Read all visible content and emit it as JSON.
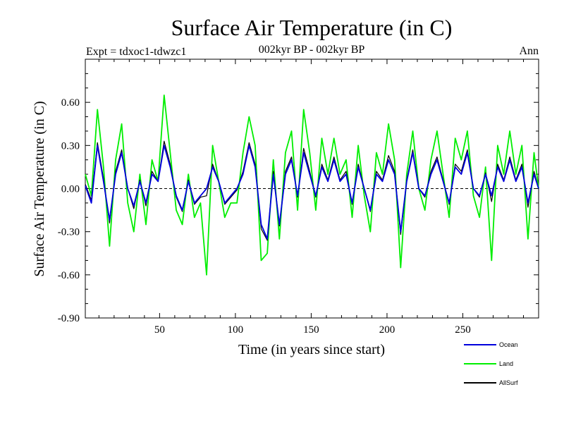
{
  "chart_data": {
    "type": "line",
    "title": "Surface Air Temperature (in C)",
    "subtitle": "002kyr BP - 002kyr BP",
    "experiment": "Expt = tdxoc1-tdwzc1",
    "season": "Ann",
    "xlabel": "Time (in years since start)",
    "ylabel": "Surface Air Temperature (in C)",
    "xlim": [
      1,
      300
    ],
    "ylim": [
      -0.9,
      0.9
    ],
    "xticks": [
      50,
      100,
      150,
      200,
      250
    ],
    "xtick_labels": [
      "50",
      "100",
      "150",
      "200",
      "250"
    ],
    "yticks": [
      -0.9,
      -0.6,
      -0.3,
      0.0,
      0.3,
      0.6
    ],
    "ytick_labels": [
      "-0.90",
      "-0.60",
      "-0.30",
      "0.00",
      "0.30",
      "0.60"
    ],
    "zero_line": "dashed",
    "x": [
      1,
      5,
      9,
      13,
      17,
      21,
      25,
      29,
      33,
      37,
      41,
      45,
      49,
      53,
      57,
      61,
      65,
      69,
      73,
      77,
      81,
      85,
      89,
      93,
      97,
      101,
      105,
      109,
      113,
      117,
      121,
      125,
      129,
      133,
      137,
      141,
      145,
      149,
      153,
      157,
      161,
      165,
      169,
      173,
      177,
      181,
      185,
      189,
      193,
      197,
      201,
      205,
      209,
      213,
      217,
      221,
      225,
      229,
      233,
      237,
      241,
      245,
      249,
      253,
      257,
      261,
      265,
      269,
      273,
      277,
      281,
      285,
      289,
      293,
      297,
      300
    ],
    "series": [
      {
        "name": "Ocean",
        "color": "#0000dd",
        "values": [
          0.02,
          -0.1,
          0.3,
          0.05,
          -0.22,
          0.1,
          0.25,
          0.0,
          -0.12,
          0.05,
          -0.1,
          0.1,
          0.05,
          0.3,
          0.15,
          -0.05,
          -0.15,
          0.05,
          -0.1,
          -0.05,
          0.0,
          0.15,
          0.05,
          -0.1,
          -0.05,
          0.0,
          0.1,
          0.3,
          0.15,
          -0.25,
          -0.35,
          0.1,
          -0.25,
          0.1,
          0.2,
          -0.05,
          0.25,
          0.1,
          -0.05,
          0.15,
          0.05,
          0.2,
          0.05,
          0.1,
          -0.1,
          0.15,
          0.0,
          -0.15,
          0.1,
          0.05,
          0.2,
          0.1,
          -0.3,
          0.05,
          0.25,
          0.0,
          -0.05,
          0.1,
          0.2,
          0.05,
          -0.1,
          0.15,
          0.1,
          0.25,
          0.0,
          -0.05,
          0.1,
          -0.05,
          0.15,
          0.05,
          0.2,
          0.05,
          0.15,
          -0.1,
          0.1,
          0.0
        ]
      },
      {
        "name": "Land",
        "color": "#00ee00",
        "values": [
          0.1,
          -0.05,
          0.55,
          0.15,
          -0.4,
          0.2,
          0.45,
          -0.1,
          -0.3,
          0.1,
          -0.25,
          0.2,
          0.05,
          0.65,
          0.25,
          -0.15,
          -0.25,
          0.1,
          -0.2,
          -0.1,
          -0.6,
          0.3,
          0.05,
          -0.2,
          -0.1,
          -0.1,
          0.25,
          0.5,
          0.3,
          -0.5,
          -0.45,
          0.2,
          -0.35,
          0.25,
          0.4,
          -0.15,
          0.55,
          0.25,
          -0.15,
          0.35,
          0.1,
          0.35,
          0.1,
          0.2,
          -0.2,
          0.3,
          -0.05,
          -0.3,
          0.25,
          0.1,
          0.45,
          0.2,
          -0.55,
          0.1,
          0.4,
          0.0,
          -0.15,
          0.2,
          0.4,
          0.1,
          -0.2,
          0.35,
          0.2,
          0.4,
          -0.05,
          -0.2,
          0.15,
          -0.5,
          0.3,
          0.1,
          0.4,
          0.1,
          0.3,
          -0.35,
          0.25,
          0.0
        ]
      },
      {
        "name": "AllSurf",
        "color": "#000000",
        "values": [
          0.03,
          -0.08,
          0.32,
          0.07,
          -0.24,
          0.12,
          0.27,
          0.0,
          -0.14,
          0.06,
          -0.12,
          0.12,
          0.05,
          0.33,
          0.17,
          -0.06,
          -0.16,
          0.06,
          -0.11,
          -0.06,
          -0.05,
          0.17,
          0.05,
          -0.11,
          -0.06,
          -0.01,
          0.12,
          0.32,
          0.17,
          -0.28,
          -0.36,
          0.12,
          -0.26,
          0.12,
          0.22,
          -0.06,
          0.28,
          0.12,
          -0.06,
          0.17,
          0.06,
          0.22,
          0.06,
          0.12,
          -0.11,
          0.17,
          0.0,
          -0.16,
          0.12,
          0.06,
          0.23,
          0.12,
          -0.32,
          0.06,
          0.27,
          0.0,
          -0.06,
          0.12,
          0.22,
          0.06,
          -0.11,
          0.17,
          0.12,
          0.27,
          0.0,
          -0.06,
          0.11,
          -0.09,
          0.17,
          0.06,
          0.22,
          0.06,
          0.17,
          -0.13,
          0.12,
          0.0
        ]
      }
    ],
    "legend": "bottom-right"
  }
}
